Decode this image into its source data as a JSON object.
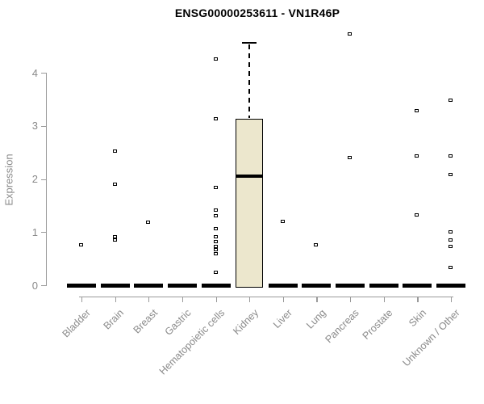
{
  "title": "ENSG00000253611 - VN1R46P",
  "colors": {
    "box_fill": "#ECE7CD",
    "box_border": "#000000",
    "axis_line": "#9a9a9a",
    "axis_text": "#8a8a8a",
    "title_text": "#000000",
    "background": "#ffffff"
  },
  "chart_data": {
    "type": "boxplot",
    "title": "ENSG00000253611 - VN1R46P",
    "xlabel": "",
    "ylabel": "Expression",
    "ylim": [
      0,
      4.8
    ],
    "yticks": [
      0,
      1,
      2,
      3,
      4
    ],
    "grid": false,
    "legend": "none",
    "categories": [
      "Bladder",
      "Brain",
      "Breast",
      "Gastric",
      "Hematopoietic cells",
      "Kidney",
      "Liver",
      "Lung",
      "Pancreas",
      "Prostate",
      "Skin",
      "Unknown / Other"
    ],
    "boxes": [
      {
        "category": "Bladder",
        "q1": 0,
        "median": 0,
        "q3": 0,
        "whisker_low": 0,
        "whisker_high": 0,
        "outliers": [
          0.75
        ]
      },
      {
        "category": "Brain",
        "q1": 0,
        "median": 0,
        "q3": 0,
        "whisker_low": 0,
        "whisker_high": 0,
        "outliers": [
          2.52,
          1.9,
          0.9,
          0.85
        ]
      },
      {
        "category": "Breast",
        "q1": 0,
        "median": 0,
        "q3": 0,
        "whisker_low": 0,
        "whisker_high": 0,
        "outliers": [
          1.18
        ]
      },
      {
        "category": "Gastric",
        "q1": 0,
        "median": 0,
        "q3": 0,
        "whisker_low": 0,
        "whisker_high": 0,
        "outliers": []
      },
      {
        "category": "Hematopoietic cells",
        "q1": 0,
        "median": 0,
        "q3": 0,
        "whisker_low": 0,
        "whisker_high": 0,
        "outliers": [
          4.25,
          3.13,
          1.83,
          1.4,
          1.3,
          1.06,
          0.9,
          0.82,
          0.73,
          0.66,
          0.58,
          0.23
        ]
      },
      {
        "category": "Kidney",
        "q1": 0,
        "median": 2.05,
        "q3": 3.13,
        "whisker_low": 0,
        "whisker_high": 4.56,
        "outliers": []
      },
      {
        "category": "Liver",
        "q1": 0,
        "median": 0,
        "q3": 0,
        "whisker_low": 0,
        "whisker_high": 0,
        "outliers": [
          1.2
        ]
      },
      {
        "category": "Lung",
        "q1": 0,
        "median": 0,
        "q3": 0,
        "whisker_low": 0,
        "whisker_high": 0,
        "outliers": [
          0.75
        ]
      },
      {
        "category": "Pancreas",
        "q1": 0,
        "median": 0,
        "q3": 0,
        "whisker_low": 0,
        "whisker_high": 0,
        "outliers": [
          4.73,
          2.4
        ]
      },
      {
        "category": "Prostate",
        "q1": 0,
        "median": 0,
        "q3": 0,
        "whisker_low": 0,
        "whisker_high": 0,
        "outliers": []
      },
      {
        "category": "Skin",
        "q1": 0,
        "median": 0,
        "q3": 0,
        "whisker_low": 0,
        "whisker_high": 0,
        "outliers": [
          3.27,
          2.43,
          1.32
        ]
      },
      {
        "category": "Unknown / Other",
        "q1": 0,
        "median": 0,
        "q3": 0,
        "whisker_low": 0,
        "whisker_high": 0,
        "outliers": [
          3.48,
          2.42,
          2.08,
          0.99,
          0.84,
          0.72,
          0.32
        ]
      }
    ]
  }
}
